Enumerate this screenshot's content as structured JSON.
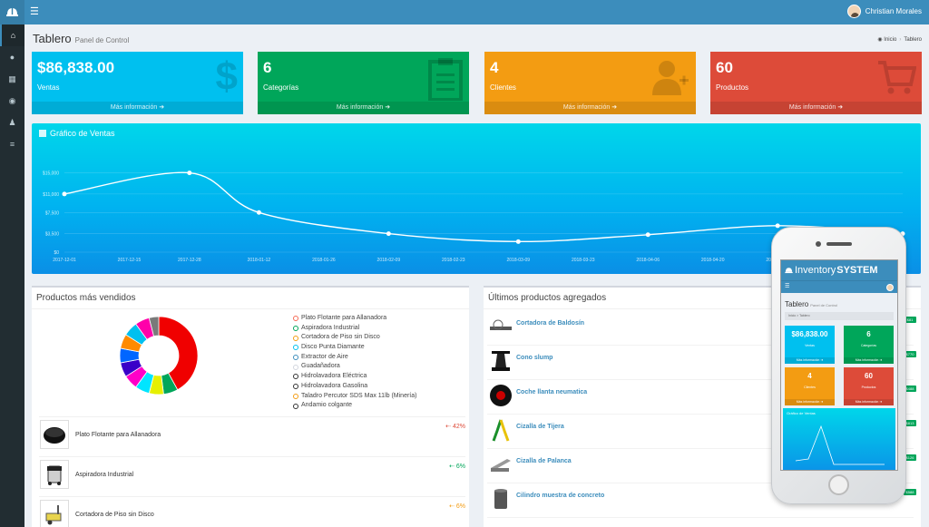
{
  "header": {
    "user_name": "Christian Morales"
  },
  "page": {
    "title": "Tablero",
    "subtitle": "Panel de Control",
    "breadcrumb": [
      "Inicio",
      "Tablero"
    ]
  },
  "boxes": [
    {
      "value": "$86,838.00",
      "label": "Ventas",
      "more": "Más información",
      "color": "#00c0ef",
      "icon": "dollar-icon"
    },
    {
      "value": "6",
      "label": "Categorías",
      "more": "Más información",
      "color": "#00a65a",
      "icon": "clipboard-icon"
    },
    {
      "value": "4",
      "label": "Clientes",
      "more": "Más información",
      "color": "#f39c12",
      "icon": "user-add-icon"
    },
    {
      "value": "60",
      "label": "Productos",
      "more": "Más información",
      "color": "#dd4b39",
      "icon": "cart-icon"
    }
  ],
  "chart_data": {
    "type": "line",
    "title": "Gráfico de Ventas",
    "x": [
      "2017-12-01",
      "2017-12-15",
      "2017-12-28",
      "2018-01-12",
      "2018-01-26",
      "2018-02-09",
      "2018-02-23",
      "2018-03-09",
      "2018-03-23",
      "2018-04-06",
      "2018-04-20",
      "2018-05-04",
      "2018-05-18"
    ],
    "y_ticks": [
      "$15,000",
      "$11,000",
      "$7,500",
      "$3,500",
      "$0"
    ],
    "points": [
      {
        "x": "2017-12-01",
        "y": 11000
      },
      {
        "x": "2017-12-28",
        "y": 15000
      },
      {
        "x": "2018-01-12",
        "y": 7500
      },
      {
        "x": "2018-02-09",
        "y": 3500
      },
      {
        "x": "2018-03-09",
        "y": 2000
      },
      {
        "x": "2018-04-06",
        "y": 3300
      },
      {
        "x": "2018-05-04",
        "y": 5000
      },
      {
        "x": "2018-05-31",
        "y": 3500
      }
    ],
    "ylim": [
      0,
      17500
    ],
    "grid": true
  },
  "top_products": {
    "title": "Productos más vendidos",
    "legend": [
      {
        "label": "Plato Flotante para Allanadora",
        "color": "#f56954"
      },
      {
        "label": "Aspiradora Industrial",
        "color": "#00a65a"
      },
      {
        "label": "Cortadora de Piso sin Disco",
        "color": "#f39c12"
      },
      {
        "label": "Disco Punta Diamante",
        "color": "#00c0ef"
      },
      {
        "label": "Extractor de Aire",
        "color": "#3c8dbc"
      },
      {
        "label": "Guadañadora",
        "color": "#d2d6de"
      },
      {
        "label": "Hidrolavadora Eléctrica",
        "color": "#333333"
      },
      {
        "label": "Hidrolavadora Gasolina",
        "color": "#333333"
      },
      {
        "label": "Taladro Percutor SDS Max 11lb (Minería)",
        "color": "#f39c12"
      },
      {
        "label": "Andamio colgante",
        "color": "#333333"
      }
    ],
    "donut": [
      {
        "value": 42,
        "color": "#f00000"
      },
      {
        "value": 6,
        "color": "#00a65a"
      },
      {
        "value": 6,
        "color": "#e6f000"
      },
      {
        "value": 6,
        "color": "#00e5ff"
      },
      {
        "value": 6,
        "color": "#ff00c8"
      },
      {
        "value": 6,
        "color": "#3a00c8"
      },
      {
        "value": 6,
        "color": "#0066ff"
      },
      {
        "value": 6,
        "color": "#ff8a00"
      },
      {
        "value": 6,
        "color": "#00c0ef"
      },
      {
        "value": 6,
        "color": "#ff00aa"
      },
      {
        "value": 4,
        "color": "#7a7a7a"
      }
    ],
    "rows": [
      {
        "name": "Plato Flotante para Allanadora",
        "pct": "42%",
        "pct_color": "#dd4b39",
        "thumb": "plate-thumb"
      },
      {
        "name": "Aspiradora Industrial",
        "pct": "6%",
        "pct_color": "#00a65a",
        "thumb": "vacuum-thumb"
      },
      {
        "name": "Cortadora de Piso sin Disco",
        "pct": "6%",
        "pct_color": "#f39c12",
        "thumb": "cutter-thumb"
      }
    ]
  },
  "latest_products": {
    "title": "Últimos productos agregados",
    "rows": [
      {
        "name": "Cortadora de Baldosín",
        "price": "$81"
      },
      {
        "name": "Cono slump",
        "price": "$770"
      },
      {
        "name": "Coche llanta neumatica",
        "price": "$488"
      },
      {
        "name": "Cizalla de Tijera",
        "price": "$813"
      },
      {
        "name": "Cizalla de Palanca",
        "price": "$126"
      },
      {
        "name": "Cilindro muestra de concreto",
        "price": "$588"
      }
    ]
  },
  "phone": {
    "brand_light": "Inventory",
    "brand_bold": "SYSTEM",
    "title": "Tablero",
    "subtitle": "Panel de Control",
    "breadcrumb": "Inicio > Tablero",
    "boxes": [
      {
        "value": "$86,838.00",
        "label": "Ventas",
        "more": "Más información",
        "color": "#00c0ef"
      },
      {
        "value": "6",
        "label": "Categorías",
        "more": "Más información",
        "color": "#00a65a"
      },
      {
        "value": "4",
        "label": "Clientes",
        "more": "Más información",
        "color": "#f39c12"
      },
      {
        "value": "60",
        "label": "Productos",
        "more": "Más información",
        "color": "#dd4b39"
      }
    ],
    "chart_title": "Gráfico de Ventas"
  }
}
